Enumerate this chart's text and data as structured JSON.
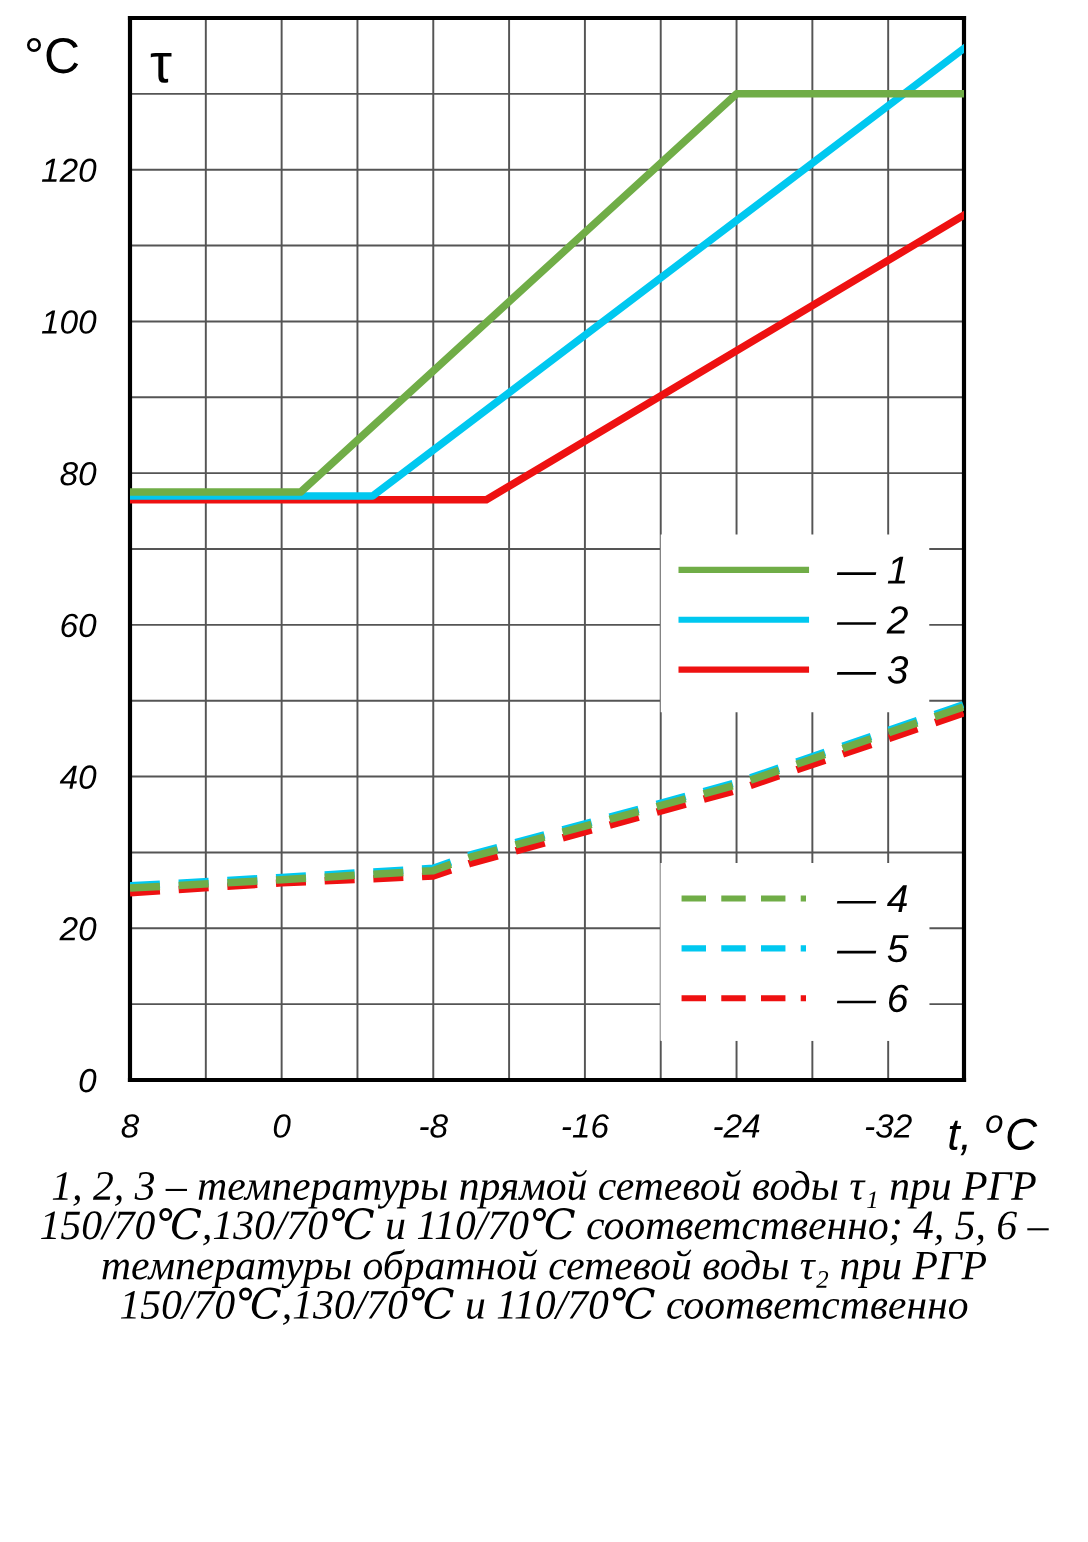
{
  "chart_data": {
    "type": "line",
    "ylabel": "°C",
    "xlabel": "t, $^{o}$C",
    "annotations": [
      "τ",
      "1, 2, 3 – температуры прямой сетевой воды τ₁ при РГР 150/70℃,130/70℃ и 110/70℃ соответственно; 4, 5, 6 – температуры обратной сетевой воды τ₂ при РГР 150/70℃,130/70℃ и 110/70℃ соответственно"
    ],
    "xlim": [
      8,
      -36
    ],
    "ylim": [
      0,
      140
    ],
    "xticks": [
      8,
      {
        "value": 4,
        "label": null
      },
      0,
      {
        "value": -4,
        "label": null
      },
      -8,
      {
        "value": -12,
        "label": null
      },
      -16,
      {
        "value": -20,
        "label": null
      },
      -24,
      {
        "value": -28,
        "label": null
      },
      -32,
      {
        "value": -36,
        "label": null
      }
    ],
    "yticks": [
      0,
      {
        "value": 10,
        "label": null
      },
      20,
      {
        "value": 30,
        "label": null
      },
      40,
      {
        "value": 50,
        "label": null
      },
      60,
      {
        "value": 70,
        "label": null
      },
      80,
      {
        "value": 90,
        "label": null
      },
      100,
      {
        "value": 110,
        "label": null
      },
      120,
      {
        "value": 130,
        "label": null
      },
      {
        "value": 140,
        "label": null
      }
    ],
    "grid": true,
    "legend": "right",
    "marker": "none",
    "series": [
      {
        "name": "— 1",
        "color": "#70ad47",
        "line_style": "solid",
        "x": [
          8,
          -1,
          -24,
          -36
        ],
        "values": [
          77.5,
          77.5,
          130,
          130
        ]
      },
      {
        "name": "— 2",
        "color": "#00c8f0",
        "line_style": "solid",
        "x": [
          8,
          -4.8,
          -36
        ],
        "values": [
          77,
          77,
          136
        ]
      },
      {
        "name": "— 3",
        "color": "#ee1111",
        "line_style": "solid",
        "x": [
          8,
          -10.8,
          -36
        ],
        "values": [
          76.5,
          76.5,
          114
        ]
      },
      {
        "name": "— 4",
        "color": "#70ad47",
        "line_style": "dashed",
        "x": [
          8,
          0,
          -8,
          -10,
          -24,
          -36
        ],
        "values": [
          25.3,
          26.4,
          27.6,
          29.4,
          38.9,
          49.2
        ]
      },
      {
        "name": "— 5",
        "color": "#00c8f0",
        "line_style": "dashed",
        "x": [
          8,
          0,
          -8,
          -10,
          -24,
          -36
        ],
        "values": [
          25.6,
          26.7,
          27.9,
          29.7,
          39.2,
          49.5
        ]
      },
      {
        "name": "— 6",
        "color": "#ee1111",
        "line_style": "dashed",
        "x": [
          8,
          0,
          -8,
          -10,
          -24,
          -36
        ],
        "values": [
          24.7,
          26,
          26.9,
          28.6,
          38.2,
          48.4
        ]
      }
    ]
  }
}
